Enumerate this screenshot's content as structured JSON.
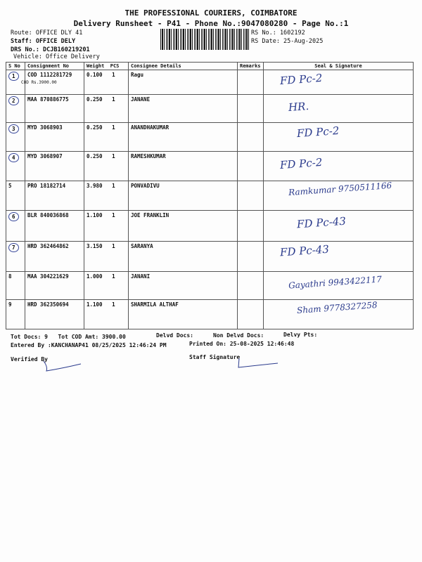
{
  "header": {
    "title": "THE PROFESSIONAL COURIERS, COIMBATORE",
    "subtitle": "Delivery Runsheet - P41 - Phone No.:9047080280 - Page No.:1",
    "route": "Route: OFFICE DLY 41",
    "staff": "Staff: OFFICE DELY",
    "drs": "DRS No.: DCJB160219201",
    "vehicle": "Vehicle: Office Delivery",
    "rs_no": "RS No.: 1602192",
    "rs_date": "RS Date: 25-Aug-2025"
  },
  "table": {
    "columns": [
      "S No",
      "Consignment No",
      "Weight",
      "PCS",
      "Consignee Details",
      "Remarks",
      "Seal & Signature"
    ],
    "rows": [
      {
        "sno": "1",
        "cn": "COD 1112281729",
        "weight": "0.100",
        "pcs": "1",
        "consignee": "Ragu",
        "note": "COD Rs.3900.00",
        "sig": "FD Pc-2"
      },
      {
        "sno": "2",
        "cn": "MAA 870886775",
        "weight": "0.250",
        "pcs": "1",
        "consignee": "JANANE",
        "sig": "HR."
      },
      {
        "sno": "3",
        "cn": "MYD 3068903",
        "weight": "0.250",
        "pcs": "1",
        "consignee": "ANANDHAKUMAR",
        "sig": "FD Pc-2"
      },
      {
        "sno": "4",
        "cn": "MYD 3068907",
        "weight": "0.250",
        "pcs": "1",
        "consignee": "RAMESHKUMAR",
        "sig": "FD Pc-2"
      },
      {
        "sno": "5",
        "cn": "PRO 18182714",
        "weight": "3.980",
        "pcs": "1",
        "consignee": "PONVADIVU",
        "sig": "Ramkumar 9750511166"
      },
      {
        "sno": "6",
        "cn": "BLR 840036868",
        "weight": "1.100",
        "pcs": "1",
        "consignee": "JOE FRANKLIN",
        "sig": "FD Pc-43"
      },
      {
        "sno": "7",
        "cn": "HRD 362464862",
        "weight": "3.150",
        "pcs": "1",
        "consignee": "SARANYA",
        "sig": "FD Pc-43"
      },
      {
        "sno": "8",
        "cn": "MAA 304221629",
        "weight": "1.000",
        "pcs": "1",
        "consignee": "JANANI",
        "sig": "Gayathri 9943422117"
      },
      {
        "sno": "9",
        "cn": "HRD 362350694",
        "weight": "1.100",
        "pcs": "1",
        "consignee": "SHARMILA ALTHAF",
        "sig": "Sham 9778327258"
      }
    ]
  },
  "footer": {
    "tot_docs": "Tot Docs:   9",
    "tot_cod": "Tot COD Amt: 3900.00",
    "delvd": "Delvd Docs:",
    "non_delvd": "Non Delvd Docs:",
    "delvy_pts": "Delvy Pts:",
    "entered_by": "Entered By :KANCHANAP41 08/25/2025 12:46:24 PM",
    "printed_on": "Printed On: 25-08-2025 12:46:48",
    "verified_by": "Verified By",
    "staff_signature": "Staff Signature"
  },
  "colors": {
    "ink": "#2a3a8c"
  }
}
